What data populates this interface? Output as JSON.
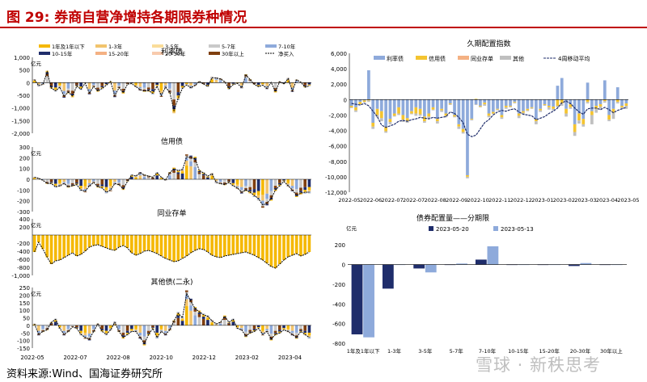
{
  "header": {
    "title": "图 29:  券商自营净增持各期限券种情况"
  },
  "source": "资料来源:Wind、国海证券研究所",
  "watermark": "雪球 · 新秩思考",
  "chart_data": [
    {
      "type": "bar",
      "title": "利率债",
      "unit": "亿元",
      "ylim": [
        -2000,
        1000
      ],
      "yticks": [
        1000,
        500,
        0,
        -500,
        -1000,
        -1500,
        -2000
      ],
      "yticklabels": [
        "1,000",
        "500",
        "0",
        "-500",
        "-1,000",
        "-1,500",
        "-2,000"
      ],
      "legend": [
        "1年及1年以下",
        "1-3年",
        "3-5年",
        "5-7年",
        "7-10年",
        "10-15年",
        "15-20年",
        "20-30年",
        "30年以上",
        "净买入"
      ],
      "colors": {
        "le1": "#f5b800",
        "y13": "#f2c46d",
        "y35": "#fadd9a",
        "y57": "#c9c9c9",
        "y710": "#8eaadb",
        "y1015": "#1f2d6b",
        "y1520": "#f4b183",
        "y2030": "#f8cbad",
        "y30": "#7f3f0f"
      },
      "net": [
        120,
        -120,
        -70,
        430,
        -220,
        -320,
        -180,
        -540,
        -380,
        -530,
        -140,
        -260,
        -20,
        -420,
        -150,
        -330,
        -230,
        -100,
        50,
        -520,
        -200,
        -400,
        -60,
        -40,
        -160,
        -280,
        -330,
        -320,
        -420,
        -140,
        -510,
        -180,
        -380,
        -1100,
        -620,
        -220,
        -90,
        -200,
        -110,
        50,
        -60,
        -150,
        200,
        180,
        150,
        40,
        -240,
        -80,
        -30,
        -200,
        300,
        130,
        -70,
        -160,
        -100,
        -230,
        10,
        -360,
        40,
        -50,
        160,
        -330,
        110,
        20,
        -180,
        -130
      ],
      "xticks": []
    },
    {
      "type": "bar",
      "title": "信用债",
      "unit": "亿元",
      "ylim": [
        -300,
        300
      ],
      "yticks": [
        300,
        200,
        100,
        0,
        -100,
        -200,
        -300
      ],
      "yticklabels": [
        "300",
        "200",
        "100",
        "0",
        "-100",
        "-200",
        "-300"
      ],
      "net": [
        20,
        10,
        -10,
        -40,
        -40,
        -70,
        -60,
        -40,
        -70,
        -60,
        -50,
        -100,
        -110,
        -60,
        -30,
        -70,
        -80,
        -120,
        -100,
        -40,
        -50,
        -90,
        -20,
        40,
        30,
        60,
        40,
        30,
        20,
        60,
        20,
        -10,
        60,
        100,
        80,
        90,
        210,
        200,
        190,
        80,
        60,
        30,
        50,
        -30,
        -40,
        -50,
        -30,
        -60,
        -80,
        -120,
        -100,
        -120,
        -150,
        -180,
        -240,
        -220,
        -180,
        -100,
        -60,
        -20,
        -60,
        -100,
        -150,
        -130,
        -120,
        -120
      ],
      "xticks": []
    },
    {
      "type": "bar",
      "title": "同业存单",
      "unit": "亿元",
      "ylim": [
        -1000,
        400
      ],
      "yticks": [
        400,
        200,
        -200,
        -400,
        -600,
        -800,
        -1000
      ],
      "yticklabels": [
        "400",
        "200",
        "-200",
        "-400",
        "-600",
        "-800",
        "-1,000"
      ],
      "net": [
        -420,
        -180,
        -350,
        -550,
        -720,
        -640,
        -620,
        -560,
        -500,
        -440,
        -520,
        -480,
        -400,
        -300,
        -260,
        -240,
        -280,
        -320,
        -360,
        -380,
        -300,
        -260,
        -320,
        -440,
        -500,
        -460,
        -400,
        -380,
        -420,
        -460,
        -520,
        -580,
        -620,
        -660,
        -640,
        -580,
        -520,
        -440,
        -380,
        -340,
        -360,
        -420,
        -500,
        -540,
        -560,
        -520,
        -500,
        -480,
        -460,
        -440,
        -420,
        -460,
        -500,
        -560,
        -620,
        -700,
        -780,
        -820,
        -720,
        -620,
        -540,
        -500,
        -460,
        -520,
        -480,
        -420
      ],
      "xticks": []
    },
    {
      "type": "bar",
      "title": "其他债(二永)",
      "unit": "亿元",
      "ylim": [
        -150,
        250
      ],
      "yticks": [
        250,
        200,
        150,
        100,
        50,
        0,
        -50,
        -100,
        -150
      ],
      "yticklabels": [
        "250",
        "200",
        "150",
        "100",
        "50",
        "0",
        "-50",
        "-100",
        "-150"
      ],
      "net": [
        10,
        -60,
        -40,
        -30,
        20,
        40,
        -20,
        -60,
        -40,
        -10,
        -20,
        -60,
        -80,
        -90,
        -40,
        10,
        -40,
        -60,
        -30,
        20,
        -40,
        -80,
        -60,
        -40,
        -40,
        -80,
        -120,
        -60,
        -20,
        -80,
        -40,
        -60,
        -30,
        30,
        80,
        50,
        210,
        160,
        110,
        90,
        70,
        60,
        30,
        10,
        20,
        60,
        20,
        40,
        -20,
        -30,
        -70,
        -50,
        -40,
        -20,
        -60,
        -40,
        -90,
        -60,
        -50,
        -30,
        -40,
        -60,
        -80,
        -40,
        -60,
        -80
      ],
      "xticks": [
        "2022-05",
        "2022-07",
        "2022-08",
        "2022-10",
        "2022-12",
        "2023-02",
        "2023-04"
      ]
    },
    {
      "type": "bar",
      "title": "久期配置指数",
      "ylim": [
        -12000,
        6000
      ],
      "yticks": [
        6000,
        4000,
        2000,
        0,
        -2000,
        -4000,
        -6000,
        -8000,
        -10000,
        -12000
      ],
      "yticklabels": [
        "6,000",
        "4,000",
        "2,000",
        "0",
        "-2,000",
        "-4,000",
        "-6,000",
        "-8,000",
        "-10,000",
        "-12,000"
      ],
      "legend": [
        "利率债",
        "信用债",
        "同业存单",
        "其他",
        "4周移动平均"
      ],
      "colors": {
        "rate": "#8eaadb",
        "credit": "#f4c430",
        "ncd": "#f4b183",
        "other": "#bfbfbf",
        "ma": "#1f2d6b"
      },
      "xticks": [
        "2022-05",
        "2022-06",
        "2022-07",
        "2022-07",
        "2022-08",
        "2022-09",
        "2022-10",
        "2022-11",
        "2022-12",
        "2023-01",
        "2023-02",
        "2023-03",
        "2023-04",
        "2023-05"
      ],
      "rate": [
        -800,
        -1000,
        -300,
        -100,
        3800,
        -3000,
        -1200,
        -1500,
        -3500,
        -2500,
        -1800,
        -1000,
        -2000,
        -2400,
        -1500,
        -1000,
        -1200,
        -2200,
        -1800,
        -1000,
        -2500,
        -1200,
        -1800,
        -500,
        -2000,
        -3200,
        -3800,
        -9800,
        -2500,
        -600,
        -800,
        -400,
        -1800,
        -1600,
        -1200,
        -2000,
        -800,
        -800,
        -300,
        -1800,
        -1500,
        -1200,
        -1000,
        -2500,
        -1200,
        -600,
        -800,
        -900,
        1800,
        2800,
        -1200,
        -600,
        -3200,
        -1800,
        -2500,
        2200,
        -1500,
        -800,
        -600,
        2500,
        -2000,
        -1200,
        1600,
        -800,
        -500
      ],
      "credit": [
        -200,
        -400,
        -300,
        -200,
        -100,
        -500,
        -800,
        -900,
        -600,
        -400,
        -300,
        -800,
        -600,
        -400,
        -300,
        -800,
        -700,
        -600,
        -400,
        -300,
        -300,
        -200,
        -300,
        -100,
        -200,
        -300,
        -400,
        -200,
        -100,
        100,
        -100,
        -200,
        -300,
        -200,
        -100,
        -300,
        -200,
        -100,
        -100,
        -300,
        -200,
        -200,
        -100,
        -300,
        -200,
        -100,
        -200,
        -300,
        -800,
        -500,
        -600,
        -400,
        -1000,
        -900,
        -700,
        -300,
        -500,
        -400,
        -300,
        -200,
        -600,
        -500,
        -300,
        -200,
        -300
      ],
      "other": [
        -100,
        -200,
        -100,
        -100,
        -200,
        -300,
        -300,
        -400,
        -200,
        -300,
        -100,
        -200,
        -300,
        -200,
        -100,
        -300,
        -200,
        -200,
        -300,
        -100,
        -300,
        -200,
        -200,
        -100,
        -100,
        -300,
        -200,
        -200,
        -100,
        -100,
        -100,
        -200,
        -200,
        -100,
        -100,
        -200,
        -200,
        -100,
        -100,
        -300,
        -200,
        -100,
        -100,
        -400,
        -200,
        -100,
        -300,
        -200,
        -200,
        -300,
        -400,
        -200,
        -500,
        -400,
        -300,
        -200,
        -1200,
        -500,
        -300,
        -200,
        -200,
        -800,
        -200,
        -200,
        -400
      ],
      "ma": [
        -500,
        -600,
        -700,
        -500,
        -800,
        -1500,
        -2200,
        -3300,
        -3600,
        -3400,
        -3200,
        -2800,
        -2700,
        -2800,
        -2600,
        -2500,
        -2300,
        -2400,
        -2500,
        -2300,
        -2400,
        -2300,
        -2200,
        -1600,
        -1800,
        -2300,
        -3000,
        -4500,
        -4800,
        -4600,
        -3800,
        -3000,
        -2600,
        -2000,
        -1600,
        -1400,
        -1500,
        -1300,
        -1200,
        -1600,
        -1900,
        -2000,
        -2100,
        -2600,
        -2400,
        -2200,
        -1800,
        -1500,
        -1100,
        -400,
        -200,
        -500,
        -1100,
        -1600,
        -1900,
        -1200,
        -1100,
        -1100,
        -1300,
        -1000,
        -1300,
        -1700,
        -1400,
        -1200,
        -1000
      ]
    },
    {
      "type": "bar",
      "title": "债券配置量——分期限",
      "unit": "亿元",
      "ylim": [
        -800,
        300
      ],
      "yticks": [
        200,
        0,
        -200,
        -400,
        -600,
        -800
      ],
      "yticklabels": [
        "200",
        "0",
        "-200",
        "-400",
        "-600",
        "-800"
      ],
      "categories": [
        "1年及1年以下",
        "1-3年",
        "3-5年",
        "5-7年",
        "7-10年",
        "10-15年",
        "15-20年",
        "20-30年",
        "30年以上"
      ],
      "series": [
        {
          "name": "2023-05-20",
          "color": "#1f2d6b",
          "values": [
            -710,
            -245,
            -40,
            0,
            50,
            0,
            -5,
            -15,
            -5
          ]
        },
        {
          "name": "2023-05-13",
          "color": "#8eaadb",
          "values": [
            -740,
            -5,
            -80,
            10,
            185,
            -5,
            -5,
            15,
            -5
          ]
        }
      ]
    }
  ]
}
